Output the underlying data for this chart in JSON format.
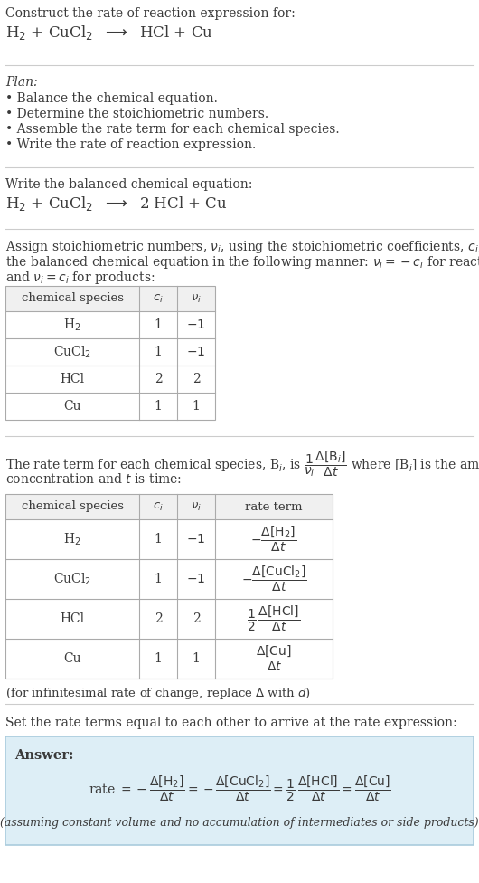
{
  "bg_color": "#ffffff",
  "text_color": "#3a3a3a",
  "title_line1": "Construct the rate of reaction expression for:",
  "reaction_unbalanced": "H$_2$ + CuCl$_2$  $\\longrightarrow$  HCl + Cu",
  "plan_title": "Plan:",
  "plan_bullets": [
    "Balance the chemical equation.",
    "Determine the stoichiometric numbers.",
    "Assemble the rate term for each chemical species.",
    "Write the rate of reaction expression."
  ],
  "balanced_label": "Write the balanced chemical equation:",
  "reaction_balanced": "H$_2$ + CuCl$_2$  $\\longrightarrow$  2 HCl + Cu",
  "assign_text1": "Assign stoichiometric numbers, $\\nu_i$, using the stoichiometric coefficients, $c_i$, from",
  "assign_text2": "the balanced chemical equation in the following manner: $\\nu_i = -c_i$ for reactants",
  "assign_text3": "and $\\nu_i = c_i$ for products:",
  "table1_headers": [
    "chemical species",
    "$c_i$",
    "$\\nu_i$"
  ],
  "table1_rows": [
    [
      "H$_2$",
      "1",
      "$-1$"
    ],
    [
      "CuCl$_2$",
      "1",
      "$-1$"
    ],
    [
      "HCl",
      "2",
      "2"
    ],
    [
      "Cu",
      "1",
      "1"
    ]
  ],
  "rate_text1": "The rate term for each chemical species, B$_i$, is $\\dfrac{1}{\\nu_i}\\dfrac{\\Delta[\\mathrm{B}_i]}{\\Delta t}$ where [B$_i$] is the amount",
  "rate_text2": "concentration and $t$ is time:",
  "table2_headers": [
    "chemical species",
    "$c_i$",
    "$\\nu_i$",
    "rate term"
  ],
  "table2_rows": [
    [
      "H$_2$",
      "1",
      "$-1$",
      "$-\\dfrac{\\Delta[\\mathrm{H_2}]}{\\Delta t}$"
    ],
    [
      "CuCl$_2$",
      "1",
      "$-1$",
      "$-\\dfrac{\\Delta[\\mathrm{CuCl_2}]}{\\Delta t}$"
    ],
    [
      "HCl",
      "2",
      "2",
      "$\\dfrac{1}{2}\\,\\dfrac{\\Delta[\\mathrm{HCl}]}{\\Delta t}$"
    ],
    [
      "Cu",
      "1",
      "1",
      "$\\dfrac{\\Delta[\\mathrm{Cu}]}{\\Delta t}$"
    ]
  ],
  "infinitesimal_note": "(for infinitesimal rate of change, replace $\\Delta$ with $d$)",
  "set_equal_text": "Set the rate terms equal to each other to arrive at the rate expression:",
  "answer_label": "Answer:",
  "answer_box_color": "#ddeef6",
  "answer_border_color": "#aaccdd",
  "answer_rate_expr": "rate $= -\\dfrac{\\Delta[\\mathrm{H_2}]}{\\Delta t} = -\\dfrac{\\Delta[\\mathrm{CuCl_2}]}{\\Delta t} = \\dfrac{1}{2}\\,\\dfrac{\\Delta[\\mathrm{HCl}]}{\\Delta t} = \\dfrac{\\Delta[\\mathrm{Cu}]}{\\Delta t}$",
  "answer_footnote": "(assuming constant volume and no accumulation of intermediates or side products)"
}
